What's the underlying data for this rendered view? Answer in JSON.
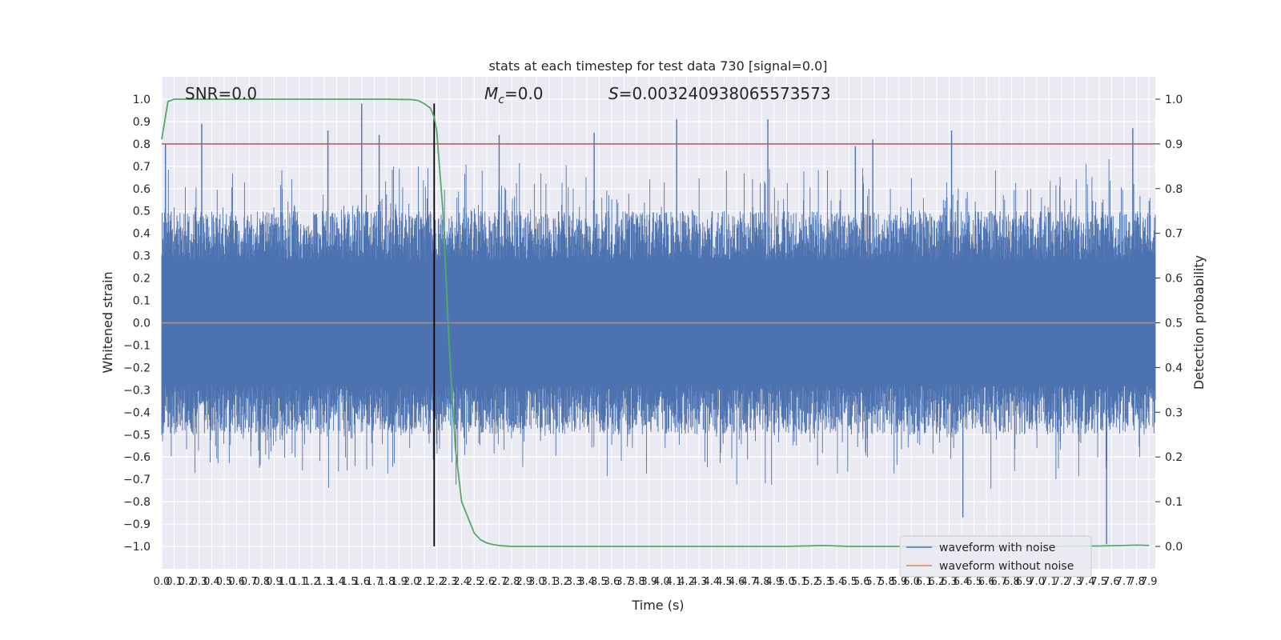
{
  "chart_data": {
    "type": "line",
    "title": "stats at each timestep for test data 730 [signal=0.0]",
    "xlabel": "Time (s)",
    "ylabel": "Whitened strain",
    "y2label": "Detection probability",
    "xlim": [
      0.0,
      7.95
    ],
    "ylim": [
      -1.1,
      1.1
    ],
    "y2lim": [
      -0.05,
      1.05
    ],
    "x_ticks": [
      0.0,
      0.1,
      0.2,
      0.3,
      0.4,
      0.5,
      0.6,
      0.7,
      0.8,
      0.9,
      1.0,
      1.1,
      1.2,
      1.3,
      1.4,
      1.5,
      1.6,
      1.7,
      1.8,
      1.9,
      2.0,
      2.1,
      2.2,
      2.3,
      2.4,
      2.5,
      2.6,
      2.7,
      2.8,
      2.9,
      3.0,
      3.1,
      3.2,
      3.3,
      3.4,
      3.5,
      3.6,
      3.7,
      3.8,
      3.9,
      4.0,
      4.1,
      4.2,
      4.3,
      4.4,
      4.5,
      4.6,
      4.7,
      4.8,
      4.9,
      5.0,
      5.1,
      5.2,
      5.3,
      5.4,
      5.5,
      5.6,
      5.7,
      5.8,
      5.9,
      6.0,
      6.1,
      6.2,
      6.3,
      6.4,
      6.5,
      6.6,
      6.7,
      6.8,
      6.9,
      7.0,
      7.1,
      7.2,
      7.3,
      7.4,
      7.5,
      7.6,
      7.7,
      7.8,
      7.9
    ],
    "x_tick_labels": [
      "0.0",
      "0.1",
      "0.2",
      "0.3",
      "0.4",
      "0.5",
      "0.6",
      "0.7",
      "0.8",
      "0.9",
      "1.0",
      "1.1",
      "1.2",
      "1.3",
      "1.4",
      "1.5",
      "1.6",
      "1.7",
      "1.8",
      "1.9",
      "2.0",
      "2.1",
      "2.2",
      "2.3",
      "2.4",
      "2.5",
      "2.6",
      "2.7",
      "2.8",
      "2.9",
      "3.0",
      "3.1",
      "3.2",
      "3.3",
      "3.4",
      "3.5",
      "3.6",
      "3.7",
      "3.8",
      "3.9",
      "4.0",
      "4.1",
      "4.2",
      "4.3",
      "4.4",
      "4.5",
      "4.6",
      "4.7",
      "4.8",
      "4.9",
      "5.0",
      "5.1",
      "5.2",
      "5.3",
      "5.4",
      "5.5",
      "5.6",
      "5.7",
      "5.8",
      "5.9",
      "6.0",
      "6.1",
      "6.2",
      "6.3",
      "6.4",
      "6.5",
      "6.6",
      "6.7",
      "6.8",
      "6.9",
      "7.0",
      "7.1",
      "7.2",
      "7.3",
      "7.4",
      "7.5",
      "7.6",
      "7.7",
      "7.8",
      "7.9"
    ],
    "y_ticks": [
      1.0,
      0.9,
      0.8,
      0.7,
      0.6,
      0.5,
      0.4,
      0.3,
      0.2,
      0.1,
      0.0,
      -0.1,
      -0.2,
      -0.3,
      -0.4,
      -0.5,
      -0.6,
      -0.7,
      -0.8,
      -0.9,
      -1.0
    ],
    "y_tick_labels": [
      "1.0",
      "0.9",
      "0.8",
      "0.7",
      "0.6",
      "0.5",
      "0.4",
      "0.3",
      "0.2",
      "0.1",
      "0.0",
      "−0.1",
      "−0.2",
      "−0.3",
      "−0.4",
      "−0.5",
      "−0.6",
      "−0.7",
      "−0.8",
      "−0.9",
      "−1.0"
    ],
    "y2_ticks": [
      1.0,
      0.9,
      0.8,
      0.7,
      0.6,
      0.5,
      0.4,
      0.3,
      0.2,
      0.1,
      0.0
    ],
    "y2_tick_labels": [
      "1.0",
      "0.9",
      "0.8",
      "0.7",
      "0.6",
      "0.5",
      "0.4",
      "0.3",
      "0.2",
      "0.1",
      "0.0"
    ],
    "grid": true,
    "legend_position": "bottom-right",
    "legend": [
      "waveform with noise",
      "waveform without noise"
    ],
    "annotations": {
      "snr": "SNR=0.0",
      "mc_symbol": "M",
      "mc_subscript": "c",
      "mc_value": "=0.0",
      "s_symbol": "S",
      "s_value": "=0.003240938065573573"
    },
    "series": [
      {
        "name": "waveform with noise",
        "color": "#4c72b0",
        "axis": "left",
        "description": "dense noise band, envelope roughly ±0.4 with spikes up to about ±0.98",
        "spikes_x": [
          0.03,
          0.32,
          1.33,
          1.6,
          1.74,
          2.7,
          3.46,
          4.12,
          4.85,
          5.55,
          5.69,
          6.32,
          6.41,
          7.56,
          7.77
        ],
        "spikes_y": [
          0.8,
          0.89,
          0.86,
          0.98,
          0.84,
          0.84,
          0.85,
          0.91,
          0.91,
          0.79,
          0.82,
          0.86,
          -0.87,
          -0.99,
          0.87
        ]
      },
      {
        "name": "waveform without noise",
        "color": "#dd8452",
        "axis": "left",
        "x": [
          0.0,
          7.95
        ],
        "y": [
          0.0,
          0.0
        ]
      },
      {
        "name": "",
        "color": "#55a868",
        "axis": "right",
        "x": [
          0.0,
          0.05,
          0.1,
          0.3,
          0.5,
          1.0,
          1.5,
          1.8,
          2.0,
          2.05,
          2.1,
          2.15,
          2.18,
          2.2,
          2.25,
          2.3,
          2.35,
          2.4,
          2.5,
          2.55,
          2.6,
          2.65,
          2.7,
          2.75,
          2.8,
          2.9,
          3.0,
          3.5,
          4.0,
          4.5,
          5.0,
          5.3,
          5.5,
          6.0,
          6.5,
          7.0,
          7.5,
          7.7,
          7.8,
          7.9
        ],
        "y": [
          0.91,
          0.995,
          1.0,
          1.0,
          1.0,
          1.0,
          1.0,
          1.0,
          0.999,
          0.997,
          0.99,
          0.98,
          0.96,
          0.93,
          0.75,
          0.45,
          0.22,
          0.1,
          0.03,
          0.015,
          0.008,
          0.004,
          0.002,
          0.001,
          0.0,
          0.0,
          0.0,
          0.0,
          0.0,
          0.0,
          0.0,
          0.002,
          0.0,
          0.0,
          0.0,
          0.0,
          0.001,
          0.002,
          0.003,
          0.002
        ]
      }
    ],
    "hlines": [
      {
        "axis": "right",
        "y": 0.9,
        "color": "#c44e52"
      }
    ],
    "vlines": [
      {
        "x": 2.18,
        "y_from": -1.0,
        "y_to": 0.98,
        "color": "#000000"
      }
    ]
  }
}
